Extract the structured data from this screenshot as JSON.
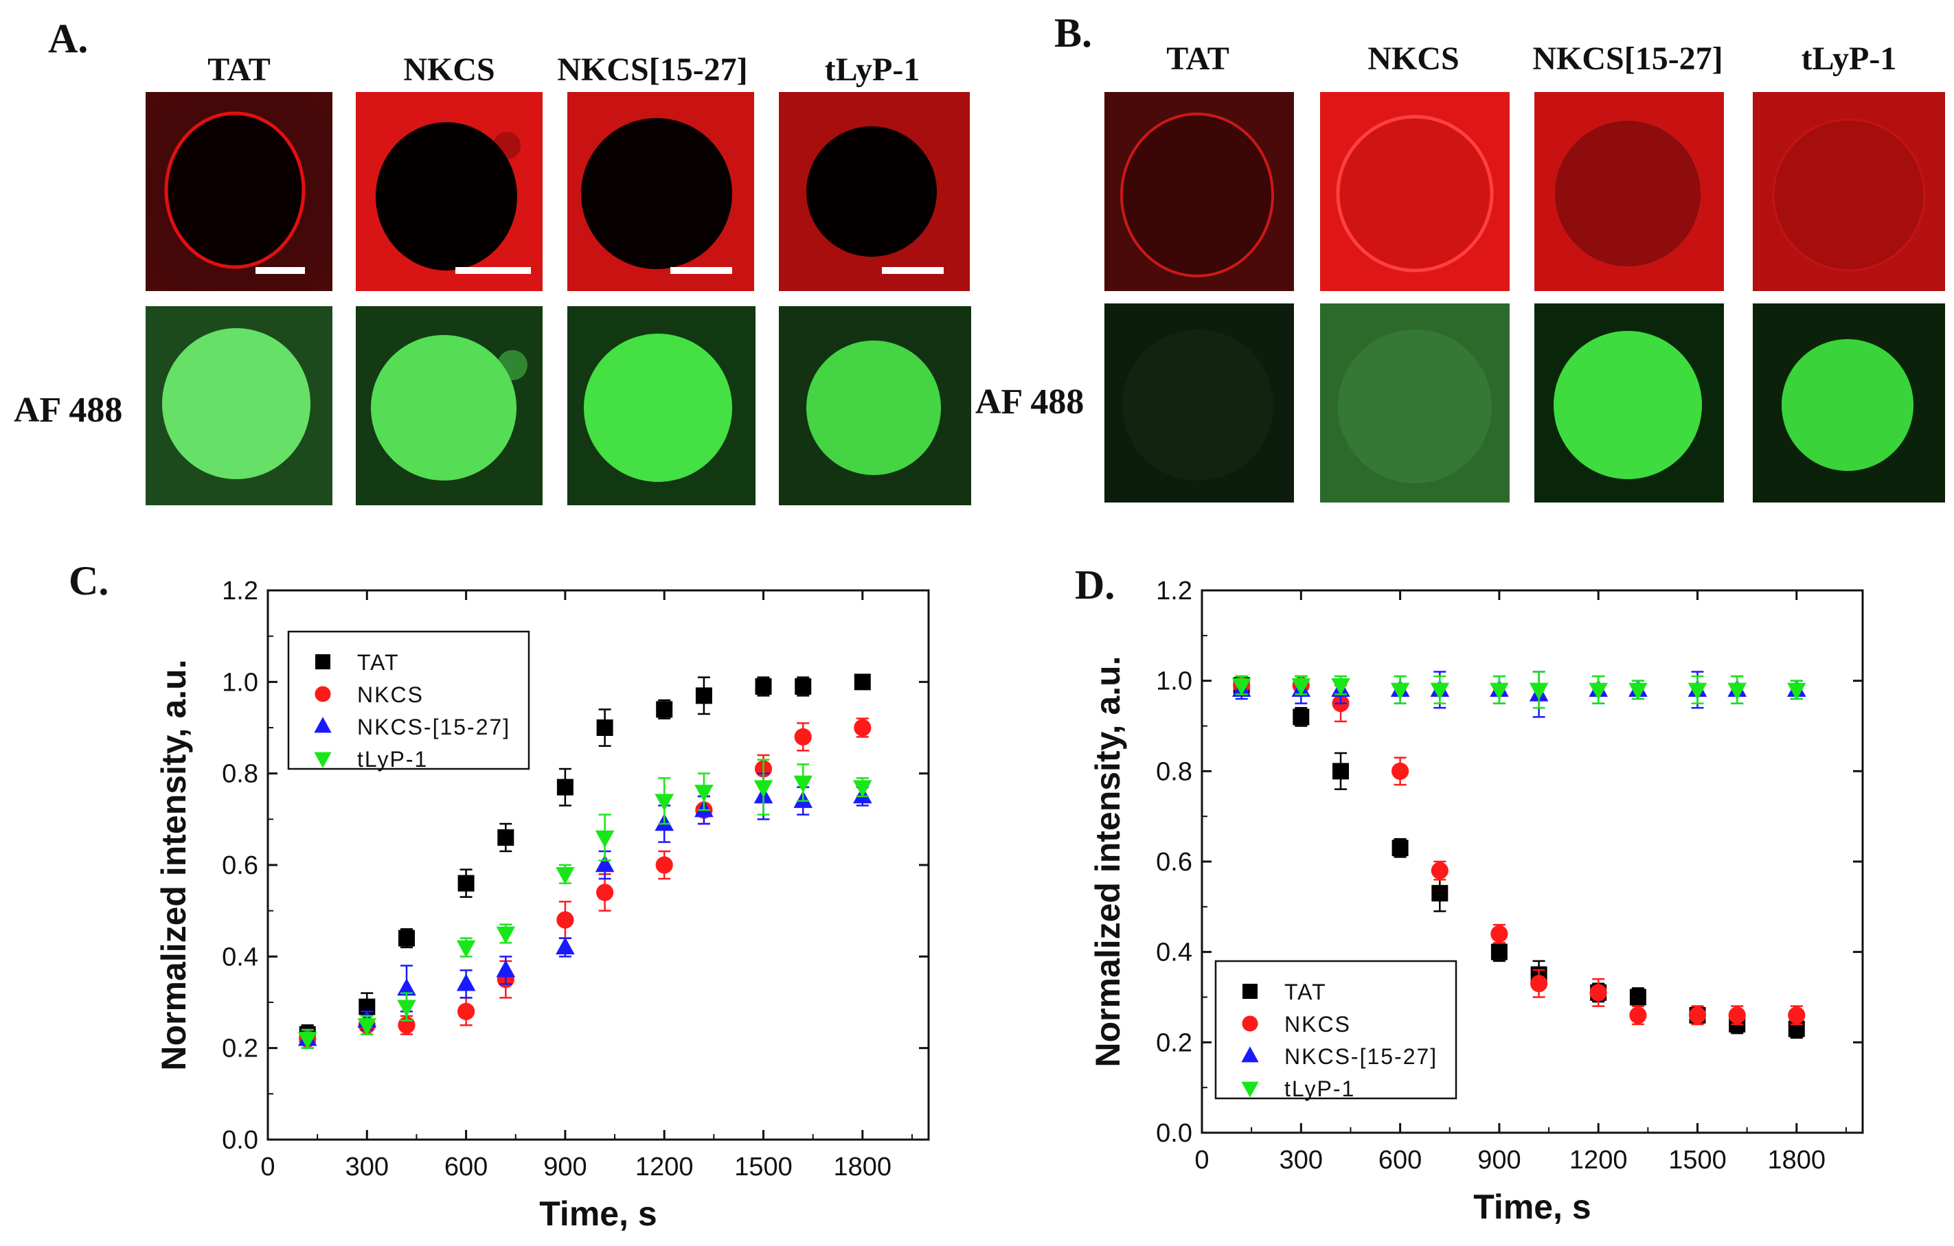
{
  "panels": {
    "A": {
      "letter": "A.",
      "columns": [
        "TAT",
        "NKCS",
        "NKCS[15-27]",
        "tLyP-1"
      ],
      "row_label": "AF 488"
    },
    "B": {
      "letter": "B.",
      "columns": [
        "TAT",
        "NKCS",
        "NKCS[15-27]",
        "tLyP-1"
      ],
      "row_label": "AF 488"
    },
    "C": {
      "letter": "C."
    },
    "D": {
      "letter": "D."
    }
  },
  "colors": {
    "TAT": "#000000",
    "NKCS": "#ff1a1a",
    "NKCS-[15-27]": "#1a1aff",
    "tLyP-1": "#19e619"
  },
  "chart_data": [
    {
      "type": "scatter",
      "panel": "C",
      "xlabel": "Time, s",
      "ylabel": "Normalized intensity, a.u.",
      "xlim": [
        0,
        2000
      ],
      "ylim": [
        0,
        1.2
      ],
      "xticks": [
        0,
        300,
        600,
        900,
        1200,
        1500,
        1800
      ],
      "yticks": [
        0.0,
        0.2,
        0.4,
        0.6,
        0.8,
        1.0,
        1.2
      ],
      "legend_position": "top-left",
      "series": [
        {
          "name": "TAT",
          "marker": "square",
          "x": [
            120,
            300,
            420,
            600,
            720,
            900,
            1020,
            1200,
            1320,
            1500,
            1620,
            1800
          ],
          "y": [
            0.23,
            0.29,
            0.44,
            0.56,
            0.66,
            0.77,
            0.9,
            0.94,
            0.97,
            0.99,
            0.99,
            1.0
          ],
          "err": [
            0.02,
            0.03,
            0.02,
            0.03,
            0.03,
            0.04,
            0.04,
            0.02,
            0.04,
            0.02,
            0.02,
            0.01
          ]
        },
        {
          "name": "NKCS",
          "marker": "circle",
          "x": [
            120,
            300,
            420,
            600,
            720,
            900,
            1020,
            1200,
            1320,
            1500,
            1620,
            1800
          ],
          "y": [
            0.22,
            0.25,
            0.25,
            0.28,
            0.35,
            0.48,
            0.54,
            0.6,
            0.72,
            0.81,
            0.88,
            0.9
          ],
          "err": [
            0.02,
            0.02,
            0.02,
            0.03,
            0.04,
            0.04,
            0.04,
            0.03,
            0.03,
            0.03,
            0.03,
            0.02
          ]
        },
        {
          "name": "NKCS-[15-27]",
          "marker": "triangle-up",
          "x": [
            120,
            300,
            420,
            600,
            720,
            900,
            1020,
            1200,
            1320,
            1500,
            1620,
            1800
          ],
          "y": [
            0.22,
            0.26,
            0.33,
            0.34,
            0.37,
            0.42,
            0.6,
            0.69,
            0.72,
            0.75,
            0.74,
            0.75
          ],
          "err": [
            0.02,
            0.02,
            0.05,
            0.03,
            0.03,
            0.02,
            0.03,
            0.04,
            0.03,
            0.05,
            0.03,
            0.02
          ]
        },
        {
          "name": "tLyP-1",
          "marker": "triangle-down",
          "x": [
            120,
            300,
            420,
            600,
            720,
            900,
            1020,
            1200,
            1320,
            1500,
            1620,
            1800
          ],
          "y": [
            0.22,
            0.25,
            0.29,
            0.42,
            0.45,
            0.58,
            0.66,
            0.74,
            0.76,
            0.77,
            0.78,
            0.77
          ],
          "err": [
            0.02,
            0.02,
            0.03,
            0.02,
            0.02,
            0.02,
            0.05,
            0.05,
            0.04,
            0.06,
            0.04,
            0.02
          ]
        }
      ]
    },
    {
      "type": "scatter",
      "panel": "D",
      "xlabel": "Time, s",
      "ylabel": "Normalized intensity, a.u.",
      "xlim": [
        0,
        2000
      ],
      "ylim": [
        0,
        1.2
      ],
      "xticks": [
        0,
        300,
        600,
        900,
        1200,
        1500,
        1800
      ],
      "yticks": [
        0.0,
        0.2,
        0.4,
        0.6,
        0.8,
        1.0,
        1.2
      ],
      "legend_position": "bottom-left",
      "series": [
        {
          "name": "TAT",
          "marker": "square",
          "x": [
            120,
            300,
            420,
            600,
            720,
            900,
            1020,
            1200,
            1320,
            1500,
            1620,
            1800
          ],
          "y": [
            0.99,
            0.92,
            0.8,
            0.63,
            0.53,
            0.4,
            0.35,
            0.31,
            0.3,
            0.26,
            0.24,
            0.23
          ],
          "err": [
            0.02,
            0.02,
            0.04,
            0.02,
            0.04,
            0.02,
            0.03,
            0.02,
            0.02,
            0.02,
            0.02,
            0.02
          ]
        },
        {
          "name": "NKCS",
          "marker": "circle",
          "x": [
            120,
            300,
            420,
            600,
            720,
            900,
            1020,
            1200,
            1320,
            1500,
            1620,
            1800
          ],
          "y": [
            0.99,
            0.99,
            0.95,
            0.8,
            0.58,
            0.44,
            0.33,
            0.31,
            0.26,
            0.26,
            0.26,
            0.26
          ],
          "err": [
            0.02,
            0.02,
            0.04,
            0.03,
            0.02,
            0.02,
            0.03,
            0.03,
            0.02,
            0.02,
            0.02,
            0.02
          ]
        },
        {
          "name": "NKCS-[15-27]",
          "marker": "triangle-up",
          "x": [
            120,
            300,
            420,
            600,
            720,
            900,
            1020,
            1200,
            1320,
            1500,
            1620,
            1800
          ],
          "y": [
            0.98,
            0.98,
            0.98,
            0.98,
            0.98,
            0.98,
            0.97,
            0.98,
            0.98,
            0.98,
            0.98,
            0.98
          ],
          "err": [
            0.02,
            0.03,
            0.03,
            0.03,
            0.04,
            0.03,
            0.05,
            0.03,
            0.02,
            0.04,
            0.03,
            0.02
          ]
        },
        {
          "name": "tLyP-1",
          "marker": "triangle-down",
          "x": [
            120,
            300,
            420,
            600,
            720,
            900,
            1020,
            1200,
            1320,
            1500,
            1620,
            1800
          ],
          "y": [
            0.99,
            0.99,
            0.99,
            0.98,
            0.98,
            0.98,
            0.98,
            0.98,
            0.98,
            0.98,
            0.98,
            0.98
          ],
          "err": [
            0.02,
            0.02,
            0.02,
            0.03,
            0.03,
            0.03,
            0.04,
            0.03,
            0.02,
            0.03,
            0.03,
            0.02
          ]
        }
      ]
    }
  ]
}
